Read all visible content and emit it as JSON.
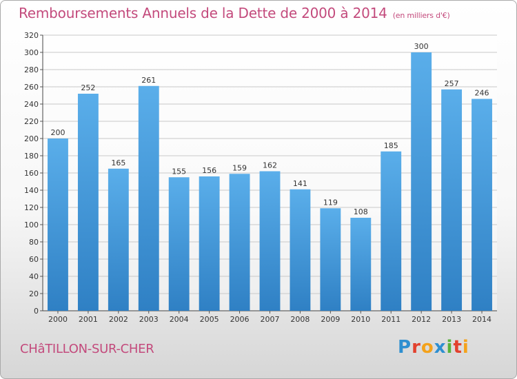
{
  "header": {
    "title": "Remboursements Annuels de la Dette de 2000 à 2014",
    "subtitle": "(en milliers d'€)"
  },
  "footer": {
    "town": "CHâTILLON-SUR-CHER",
    "logo_text": "Proxiti",
    "logo_letters": [
      "P",
      "r",
      "o",
      "x",
      "i",
      "t",
      "i"
    ]
  },
  "colors": {
    "title": "#c34a7c",
    "bar_light": "#5aaeea",
    "bar_dark": "#2f80c4",
    "grid": "#c8c8c8"
  },
  "chart_data": {
    "type": "bar",
    "title": "Remboursements Annuels de la Dette de 2000 à 2014",
    "xlabel": "",
    "ylabel": "",
    "categories": [
      "2000",
      "2001",
      "2002",
      "2003",
      "2004",
      "2005",
      "2006",
      "2007",
      "2008",
      "2009",
      "2010",
      "2011",
      "2012",
      "2013",
      "2014"
    ],
    "values": [
      200,
      252,
      165,
      261,
      155,
      156,
      159,
      162,
      141,
      119,
      108,
      185,
      300,
      257,
      246
    ],
    "ylim": [
      0,
      320
    ],
    "yticks": [
      0,
      20,
      40,
      60,
      80,
      100,
      120,
      140,
      160,
      180,
      200,
      220,
      240,
      260,
      280,
      300,
      320
    ],
    "grid": true
  }
}
